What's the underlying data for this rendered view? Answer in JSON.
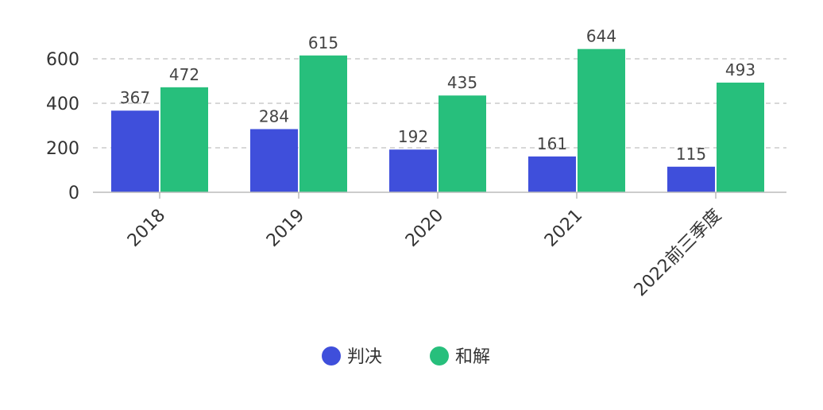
{
  "chart_data": {
    "type": "bar",
    "categories": [
      "2018",
      "2019",
      "2020",
      "2021",
      "2022前三季度"
    ],
    "series": [
      {
        "name": "判决",
        "values": [
          367,
          284,
          192,
          161,
          115
        ],
        "color": "#3f4fdb"
      },
      {
        "name": "和解",
        "values": [
          472,
          615,
          435,
          644,
          493
        ],
        "color": "#27bf7c"
      }
    ],
    "ylim": [
      0,
      680
    ],
    "yticks": [
      0,
      200,
      400,
      600
    ],
    "grid": true,
    "legend_position": "bottom-center"
  }
}
